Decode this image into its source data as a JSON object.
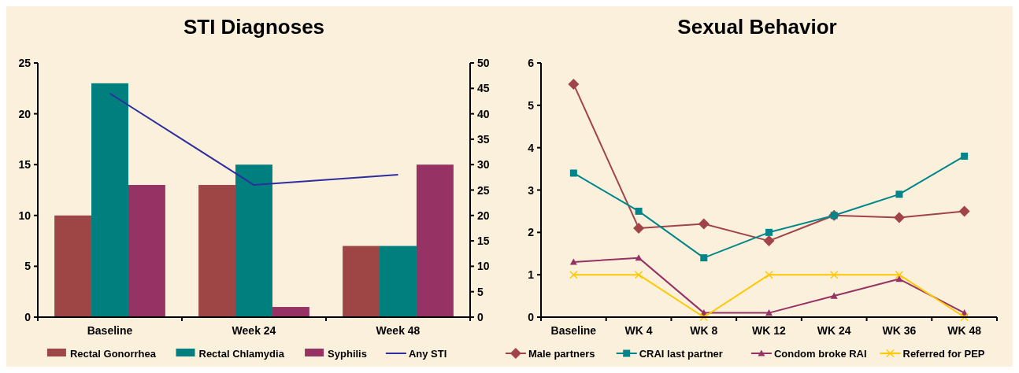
{
  "chart_data": [
    {
      "type": "bar",
      "title": "STI Diagnoses",
      "categories": [
        "Baseline",
        "Week 24",
        "Week 48"
      ],
      "ylim": [
        0,
        25
      ],
      "yticks": [
        0,
        5,
        10,
        15,
        20,
        25
      ],
      "y2lim": [
        0,
        50
      ],
      "y2ticks": [
        0,
        5,
        10,
        15,
        20,
        25,
        30,
        35,
        40,
        45,
        50
      ],
      "grid": false,
      "legend": "bottom",
      "series": [
        {
          "name": "Rectal Gonorrhea",
          "color": "#9e4646",
          "values": [
            10,
            13,
            7
          ]
        },
        {
          "name": "Rectal Chlamydia",
          "color": "#007f7f",
          "values": [
            23,
            15,
            7
          ]
        },
        {
          "name": "Syphilis",
          "color": "#963264",
          "values": [
            13,
            1,
            15
          ]
        },
        {
          "name": "Any STI",
          "type": "line",
          "axis": "y2",
          "color": "#2e2e9e",
          "values": [
            44,
            26,
            28
          ]
        }
      ]
    },
    {
      "type": "line",
      "title": "Sexual Behavior",
      "categories": [
        "Baseline",
        "WK 4",
        "WK 8",
        "WK 12",
        "WK 24",
        "WK 36",
        "WK 48"
      ],
      "ylim": [
        0,
        6
      ],
      "yticks": [
        0,
        1,
        2,
        3,
        4,
        5,
        6
      ],
      "grid": false,
      "legend": "bottom",
      "line_style": "solid",
      "series": [
        {
          "name": "Male partners",
          "color": "#a0444a",
          "marker": "diamond",
          "values": [
            5.5,
            2.1,
            2.2,
            1.8,
            2.4,
            2.35,
            2.5
          ]
        },
        {
          "name": "CRAI last partner",
          "color": "#00868a",
          "marker": "square",
          "values": [
            3.4,
            2.5,
            1.4,
            2.0,
            2.4,
            2.9,
            3.8
          ]
        },
        {
          "name": "Condom broke RAI",
          "color": "#963264",
          "marker": "triangle",
          "values": [
            1.3,
            1.4,
            0.1,
            0.1,
            0.5,
            0.9,
            0.1
          ]
        },
        {
          "name": "Referred for PEP",
          "color": "#ffc800",
          "marker": "cross",
          "values": [
            1,
            1,
            0,
            1,
            1,
            1,
            0
          ]
        }
      ]
    }
  ]
}
